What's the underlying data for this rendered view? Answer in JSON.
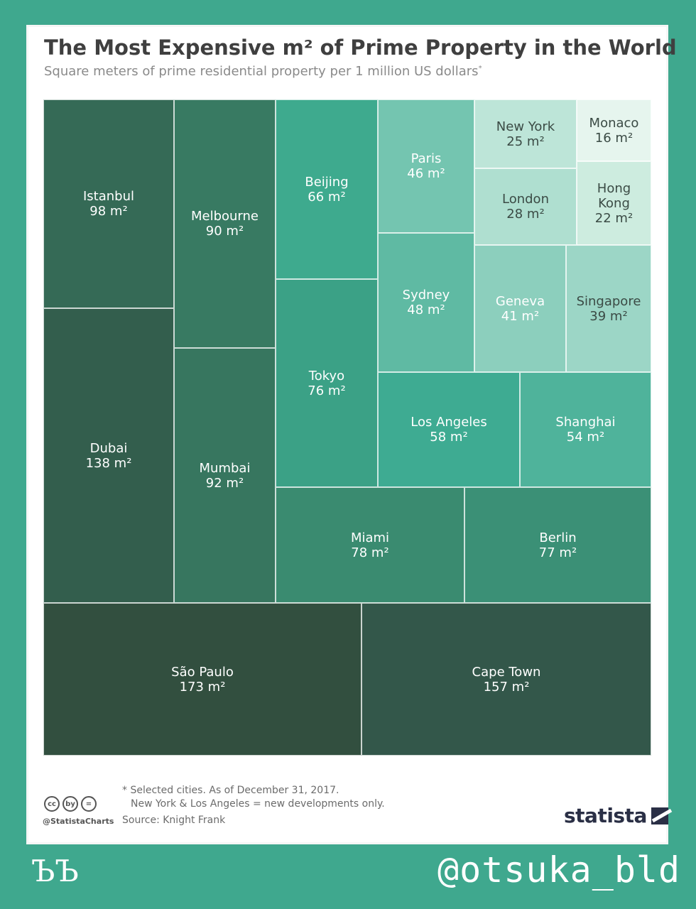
{
  "header": {
    "title": "The Most Expensive m² of Prime Property in the World",
    "subtitle": "Square meters of prime residential property per 1 million US dollars",
    "subtitle_mark": "*"
  },
  "footer": {
    "note_line1": "* Selected cities. As of December 31, 2017.",
    "note_line2": "New York & Los Angeles = new developments only.",
    "source": "Source: Knight Frank",
    "cc_handle": "@StatistaCharts",
    "logo": "statista"
  },
  "cc_icons": [
    "cc",
    "by",
    "="
  ],
  "overlay": {
    "left_mark": "ЪЪ",
    "signature": "@otsuka_bld"
  },
  "colors": {
    "background": "#3fa88e",
    "darkest": "#324f3f",
    "lightest": "#e6f5ee"
  },
  "chart_data": {
    "type": "treemap",
    "title": "The Most Expensive m² of Prime Property in the World",
    "unit": "m²",
    "items": [
      {
        "name": "São Paulo",
        "value": 173,
        "label": "173 m²",
        "color": "#324f3f"
      },
      {
        "name": "Cape Town",
        "value": 157,
        "label": "157 m²",
        "color": "#33574a"
      },
      {
        "name": "Dubai",
        "value": 138,
        "label": "138 m²",
        "color": "#335e4d"
      },
      {
        "name": "Istanbul",
        "value": 98,
        "label": "98 m²",
        "color": "#356a56"
      },
      {
        "name": "Mumbai",
        "value": 92,
        "label": "92 m²",
        "color": "#37765f"
      },
      {
        "name": "Melbourne",
        "value": 90,
        "label": "90 m²",
        "color": "#387a62"
      },
      {
        "name": "Miami",
        "value": 78,
        "label": "78 m²",
        "color": "#3a8b70"
      },
      {
        "name": "Berlin",
        "value": 77,
        "label": "77 m²",
        "color": "#3b9076"
      },
      {
        "name": "Tokyo",
        "value": 76,
        "label": "76 m²",
        "color": "#3ba186"
      },
      {
        "name": "Beijing",
        "value": 66,
        "label": "66 m²",
        "color": "#3eaa8e"
      },
      {
        "name": "Los Angeles",
        "value": 58,
        "label": "58 m²",
        "color": "#3eab92"
      },
      {
        "name": "Shanghai",
        "value": 54,
        "label": "54 m²",
        "color": "#4fb39b"
      },
      {
        "name": "Sydney",
        "value": 48,
        "label": "48 m²",
        "color": "#5fbaa3"
      },
      {
        "name": "Paris",
        "value": 46,
        "label": "46 m²",
        "color": "#74c5b0"
      },
      {
        "name": "Geneva",
        "value": 41,
        "label": "41 m²",
        "color": "#8ccfbd"
      },
      {
        "name": "Singapore",
        "value": 39,
        "label": "39 m²",
        "color": "#9cd6c6"
      },
      {
        "name": "London",
        "value": 28,
        "label": "28 m²",
        "color": "#afdfd0"
      },
      {
        "name": "New York",
        "value": 25,
        "label": "25 m²",
        "color": "#bde5d8"
      },
      {
        "name": "Hong Kong",
        "value": 22,
        "label": "22 m²",
        "color": "#cdecdf"
      },
      {
        "name": "Monaco",
        "value": 16,
        "label": "16 m²",
        "color": "#e6f5ee"
      }
    ]
  }
}
